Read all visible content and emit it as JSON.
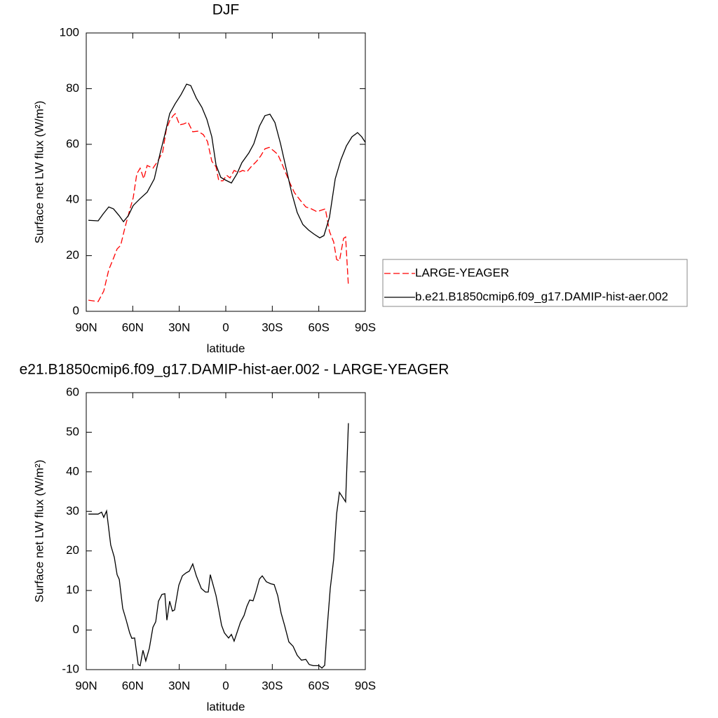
{
  "chart_data": [
    {
      "type": "line",
      "title": "DJF",
      "xlabel": "latitude",
      "ylabel": "Surface net LW flux (W/m²)",
      "xlim": [
        90,
        -90
      ],
      "ylim": [
        0,
        100
      ],
      "xticks": [
        {
          "value": 90,
          "label": "90N"
        },
        {
          "value": 60,
          "label": "60N"
        },
        {
          "value": 30,
          "label": "30N"
        },
        0,
        {
          "value": -30,
          "label": "30S"
        },
        {
          "value": -60,
          "label": "60S"
        },
        {
          "value": -90,
          "label": "90S"
        }
      ],
      "yticks": [
        0,
        20,
        40,
        60,
        80,
        100
      ],
      "grid": false,
      "legend": "right",
      "series": [
        {
          "name": "LARGE-YEAGER",
          "color": "#ff0000",
          "dashed": true,
          "x": [
            88.6,
            82.3,
            78.7,
            75.5,
            72.4,
            70.1,
            67.8,
            65.1,
            62.0,
            59.7,
            57.4,
            55.2,
            52.9,
            50.7,
            47.0,
            43.9,
            40.7,
            38.4,
            36.2,
            33.9,
            32.6,
            29.8,
            27.1,
            24.4,
            21.3,
            18.1,
            14.5,
            11.8,
            9.0,
            6.3,
            4.5,
            1.8,
            -0.5,
            -2.7,
            -5.4,
            -8.1,
            -10.9,
            -13.6,
            -16.3,
            -19.9,
            -22.6,
            -25.3,
            -28.0,
            -30.8,
            -33.5,
            -36.2,
            -38.9,
            -41.6,
            -44.3,
            -47.9,
            -51.6,
            -55.2,
            -58.8,
            -61.5,
            -64.2,
            -66.9,
            -69.6,
            -71.5,
            -73.3,
            -76.0,
            -77.3,
            -79.1
          ],
          "values": [
            4,
            3.5,
            7.3,
            14.9,
            19.1,
            22.4,
            23.7,
            30,
            36.3,
            40.8,
            49.4,
            51.4,
            47.6,
            52.4,
            51.4,
            53.9,
            57.2,
            65.2,
            68.5,
            70.3,
            71,
            67,
            67.3,
            68,
            64.5,
            64.7,
            63.5,
            61,
            53.9,
            51.9,
            46.9,
            46.9,
            48.9,
            47.9,
            50.6,
            49.9,
            50.6,
            50.1,
            51.9,
            53.9,
            55.9,
            58.4,
            58.9,
            57.7,
            56.4,
            53.1,
            49.4,
            45.8,
            42.6,
            40,
            37.5,
            36.8,
            35.8,
            36.3,
            36.8,
            28.7,
            24.9,
            18.6,
            18.1,
            26.2,
            26.7,
            9.1
          ]
        },
        {
          "name": "b.e21.B1850cmip6.f09_g17.DAMIP-hist-aer.002",
          "color": "#000000",
          "dashed": false,
          "x": [
            88.6,
            82.3,
            79.1,
            75.5,
            72.4,
            68.7,
            66.0,
            62.9,
            59.7,
            55.2,
            50.7,
            46.1,
            42.5,
            39.3,
            36.2,
            32.6,
            28.9,
            25.3,
            22.6,
            19.0,
            15.4,
            12.2,
            9.0,
            6.3,
            3.2,
            0.0,
            -3.6,
            -7.2,
            -10.4,
            -14.9,
            -18.1,
            -21.7,
            -25.3,
            -28.5,
            -31.7,
            -35.3,
            -38.9,
            -42.5,
            -46.1,
            -49.7,
            -53.4,
            -57.0,
            -60.6,
            -63.3,
            -66.9,
            -70.6,
            -74.2,
            -77.8,
            -81.4,
            -85.0,
            -87.7,
            -90.0
          ],
          "values": [
            32.7,
            32.5,
            35,
            37.5,
            36.8,
            34.3,
            32.2,
            34.3,
            38,
            40.5,
            42.8,
            47.6,
            56.4,
            63.5,
            71,
            74.6,
            77.8,
            81.6,
            81.1,
            76.6,
            73.3,
            69,
            62.7,
            52.6,
            48.1,
            47.1,
            46.1,
            49.4,
            53.4,
            56.9,
            60.2,
            66.5,
            70.3,
            70.8,
            67.8,
            60.2,
            51.4,
            42.6,
            35.5,
            31.2,
            29.2,
            27.7,
            26.4,
            27.2,
            33.8,
            47.6,
            54.4,
            59.4,
            62.7,
            64.2,
            62.7,
            60.7
          ]
        }
      ]
    },
    {
      "type": "line",
      "title": "e21.B1850cmip6.f09_g17.DAMIP-hist-aer.002 - LARGE-YEAGER",
      "xlabel": "latitude",
      "ylabel": "Surface net LW flux (W/m²)",
      "xlim": [
        90,
        -90
      ],
      "ylim": [
        -10,
        60
      ],
      "xticks": [
        {
          "value": 90,
          "label": "90N"
        },
        {
          "value": 60,
          "label": "60N"
        },
        {
          "value": 30,
          "label": "30N"
        },
        0,
        {
          "value": -30,
          "label": "30S"
        },
        {
          "value": -60,
          "label": "60S"
        },
        {
          "value": -90,
          "label": "90S"
        }
      ],
      "yticks": [
        -10,
        0,
        10,
        20,
        30,
        40,
        50,
        60
      ],
      "grid": false,
      "series": [
        {
          "color": "#000000",
          "dashed": false,
          "x": [
            88.6,
            82.3,
            80.1,
            78.7,
            76.9,
            74.2,
            71.9,
            70.1,
            68.7,
            66.5,
            64.2,
            62.0,
            60.6,
            58.8,
            56.5,
            55.2,
            53.4,
            51.6,
            49.3,
            47.0,
            45.2,
            43.4,
            41.2,
            39.3,
            38.0,
            36.2,
            34.4,
            33.0,
            30.3,
            28.0,
            25.8,
            23.5,
            21.3,
            19.0,
            15.8,
            13.1,
            11.3,
            10.0,
            8.1,
            6.3,
            4.5,
            2.7,
            0.9,
            -1.8,
            -3.6,
            -5.4,
            -7.2,
            -9.5,
            -11.8,
            -13.6,
            -15.4,
            -17.6,
            -19.4,
            -21.7,
            -23.5,
            -26.2,
            -28.9,
            -31.2,
            -33.5,
            -35.7,
            -38.0,
            -40.7,
            -43.4,
            -46.1,
            -48.8,
            -51.6,
            -53.8,
            -56.5,
            -60.2,
            -62.0,
            -63.8,
            -65.1,
            -67.4,
            -69.6,
            -71.5,
            -73.3,
            -76.0,
            -77.3,
            -79.1
          ],
          "values": [
            29.3,
            29.3,
            29.8,
            28.5,
            30.1,
            21.5,
            18.4,
            14,
            12.8,
            5.5,
            2.5,
            -0.7,
            -2.1,
            -2,
            -8.7,
            -9,
            -5.1,
            -7.8,
            -4.6,
            0.7,
            2.1,
            7.3,
            9,
            9.2,
            2.5,
            7.3,
            4.8,
            5.1,
            11.3,
            13.7,
            14.4,
            14.9,
            16.7,
            13.7,
            10.5,
            9.6,
            9.6,
            14,
            11.3,
            8.7,
            5.1,
            1.2,
            -0.7,
            -2,
            -1.1,
            -2.8,
            -0.7,
            2,
            3.7,
            6,
            7.6,
            7.4,
            9.6,
            12.9,
            13.7,
            12.2,
            11.7,
            11.5,
            8.7,
            4.3,
            1.1,
            -3,
            -4.1,
            -6.4,
            -7.6,
            -7.4,
            -8.7,
            -9,
            -9,
            -9.6,
            -8.9,
            -1.1,
            10.5,
            17.9,
            29.4,
            34.8,
            33.2,
            32.4,
            52.3
          ]
        }
      ]
    }
  ]
}
